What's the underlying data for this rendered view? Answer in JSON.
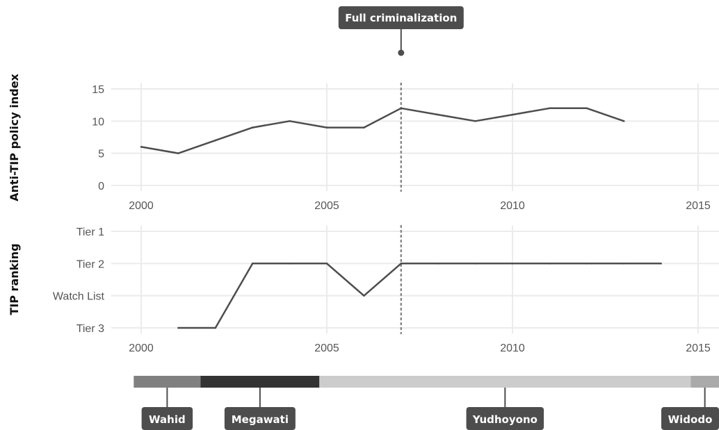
{
  "chart_data": [
    {
      "type": "line",
      "ylabel": "Anti-TIP policy index",
      "x": [
        2000,
        2001,
        2002,
        2003,
        2004,
        2005,
        2006,
        2007,
        2008,
        2009,
        2010,
        2011,
        2012,
        2013
      ],
      "values": [
        6,
        5,
        7,
        9,
        10,
        9,
        9,
        12,
        11,
        10,
        11,
        12,
        12,
        10
      ],
      "xlim": [
        2000,
        2015
      ],
      "ylim": [
        0,
        15
      ],
      "x_ticks": [
        "2000",
        "2005",
        "2010",
        "2015"
      ],
      "y_ticks": [
        "0",
        "5",
        "10",
        "15"
      ],
      "grid": true,
      "color": "#4d4d4d"
    },
    {
      "type": "line",
      "ylabel": "TIP ranking",
      "categories": [
        "Tier 3",
        "Watch List",
        "Tier 2",
        "Tier 1"
      ],
      "x": [
        2001,
        2002,
        2003,
        2004,
        2005,
        2006,
        2007,
        2008,
        2009,
        2010,
        2011,
        2012,
        2013,
        2014
      ],
      "values": [
        "Tier 3",
        "Tier 3",
        "Tier 2",
        "Tier 2",
        "Tier 2",
        "Watch List",
        "Tier 2",
        "Tier 2",
        "Tier 2",
        "Tier 2",
        "Tier 2",
        "Tier 2",
        "Tier 2",
        "Tier 2"
      ],
      "xlim": [
        2000,
        2015
      ],
      "x_ticks": [
        "2000",
        "2005",
        "2010",
        "2015"
      ],
      "grid": true,
      "color": "#4d4d4d"
    }
  ],
  "event": {
    "label": "Full criminalization",
    "year": 2007
  },
  "presidents": [
    {
      "name": "Wahid",
      "start": 1999.8,
      "end": 2001.6,
      "color": "#808080"
    },
    {
      "name": "Megawati",
      "start": 2001.6,
      "end": 2004.8,
      "color": "#333333"
    },
    {
      "name": "Yudhoyono",
      "start": 2004.8,
      "end": 2014.8,
      "color": "#cccccc"
    },
    {
      "name": "Widodo",
      "start": 2014.8,
      "end": 2016,
      "color": "#aaaaaa"
    }
  ]
}
